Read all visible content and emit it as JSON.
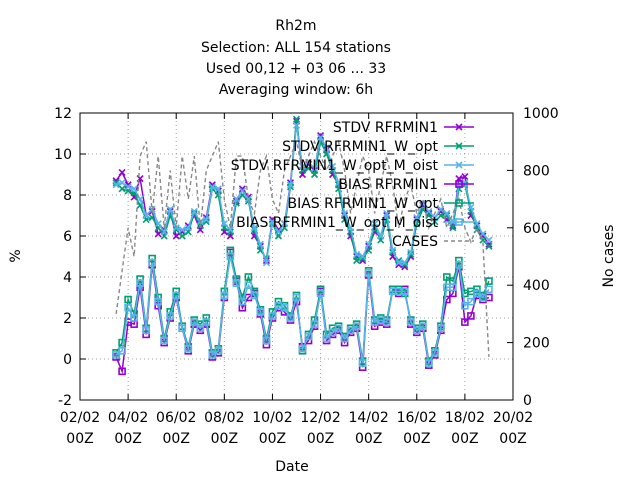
{
  "chart_data": {
    "type": "line",
    "title_lines": [
      "Rh2m",
      "Selection: ALL    154 stations",
      "Used  00,12  + 03 06 ... 33",
      "Averaging window:  6h"
    ],
    "xlabel": "Date",
    "ylabel": "%",
    "y2label": "No cases",
    "xlim": [
      0,
      18
    ],
    "ylim": [
      -2,
      12
    ],
    "y2lim": [
      0,
      1000
    ],
    "x_ticks": [
      {
        "v": 0,
        "l1": "02/02",
        "l2": "00Z"
      },
      {
        "v": 2,
        "l1": "04/02",
        "l2": "00Z"
      },
      {
        "v": 4,
        "l1": "06/02",
        "l2": "00Z"
      },
      {
        "v": 6,
        "l1": "08/02",
        "l2": "00Z"
      },
      {
        "v": 8,
        "l1": "10/02",
        "l2": "00Z"
      },
      {
        "v": 10,
        "l1": "12/02",
        "l2": "00Z"
      },
      {
        "v": 12,
        "l1": "14/02",
        "l2": "00Z"
      },
      {
        "v": 14,
        "l1": "16/02",
        "l2": "00Z"
      },
      {
        "v": 16,
        "l1": "18/02",
        "l2": "00Z"
      },
      {
        "v": 18,
        "l1": "20/02",
        "l2": "00Z"
      }
    ],
    "y_ticks": [
      "-2",
      "0",
      "2",
      "4",
      "6",
      "8",
      "10",
      "12"
    ],
    "y2_ticks": [
      "0",
      "200",
      "400",
      "600",
      "800",
      "1000"
    ],
    "grid": true,
    "legend_position": "top-right",
    "colors": {
      "purple": "#9400d3",
      "green": "#009e73",
      "skyblue": "#56b4e9",
      "cases": "#888888"
    },
    "x": [
      1.5,
      1.75,
      2.0,
      2.25,
      2.5,
      2.75,
      3.0,
      3.25,
      3.5,
      3.75,
      4.0,
      4.25,
      4.5,
      4.75,
      5.0,
      5.25,
      5.5,
      5.75,
      6.0,
      6.25,
      6.5,
      6.75,
      7.0,
      7.25,
      7.5,
      7.75,
      8.0,
      8.25,
      8.5,
      8.75,
      9.0,
      9.25,
      9.5,
      9.75,
      10.0,
      10.25,
      10.5,
      10.75,
      11.0,
      11.25,
      11.5,
      11.75,
      12.0,
      12.25,
      12.5,
      12.75,
      13.0,
      13.25,
      13.5,
      13.75,
      14.0,
      14.25,
      14.5,
      14.75,
      15.0,
      15.25,
      15.5,
      15.75,
      16.0,
      16.25,
      16.5,
      16.75,
      17.0
    ],
    "series": [
      {
        "name": "STDV RFRMIN1",
        "axis": "y1",
        "color": "#9400d3",
        "marker": "x",
        "dash": "",
        "values": [
          8.7,
          9.1,
          8.5,
          7.9,
          8.8,
          7.0,
          7.2,
          6.1,
          6.3,
          7.2,
          6.0,
          6.2,
          6.5,
          7.0,
          6.3,
          6.9,
          8.5,
          8.2,
          6.2,
          6.0,
          7.7,
          8.3,
          7.9,
          6.0,
          5.5,
          4.8,
          6.8,
          6.3,
          6.6,
          8.6,
          11.6,
          9.0,
          9.5,
          9.2,
          10.9,
          10.2,
          9.0,
          8.5,
          7.0,
          6.0,
          5.0,
          4.8,
          5.5,
          6.2,
          6.0,
          7.0,
          5.0,
          4.6,
          4.5,
          5.0,
          6.8,
          7.5,
          7.1,
          6.9,
          7.2,
          6.8,
          6.5,
          8.8,
          8.9,
          7.0,
          6.5,
          6.0,
          5.6
        ]
      },
      {
        "name": "STDV RFRMIN1_W_opt",
        "axis": "y1",
        "color": "#009e73",
        "marker": "x",
        "dash": "",
        "values": [
          8.6,
          8.3,
          8.2,
          8.1,
          7.5,
          6.8,
          6.9,
          6.4,
          6.0,
          7.0,
          6.3,
          6.0,
          6.2,
          7.1,
          6.5,
          6.7,
          8.3,
          8.0,
          6.4,
          6.2,
          7.6,
          8.0,
          7.7,
          6.3,
          5.3,
          4.9,
          6.6,
          6.0,
          6.4,
          8.4,
          11.7,
          9.2,
          9.3,
          9.0,
          10.6,
          10.0,
          9.2,
          8.3,
          6.8,
          6.2,
          4.8,
          4.9,
          5.3,
          6.4,
          5.8,
          6.8,
          5.2,
          4.8,
          4.6,
          5.1,
          6.6,
          7.3,
          7.0,
          6.7,
          7.0,
          7.0,
          6.4,
          8.3,
          8.5,
          7.2,
          6.3,
          5.8,
          5.5
        ]
      },
      {
        "name": "STDV RFRMIN1_W_opt_M_oist",
        "axis": "y1",
        "color": "#56b4e9",
        "marker": "x",
        "dash": "",
        "values": [
          8.5,
          8.6,
          8.4,
          8.3,
          7.8,
          7.0,
          7.3,
          6.6,
          6.2,
          7.3,
          6.4,
          6.3,
          6.4,
          7.2,
          6.7,
          6.8,
          8.4,
          8.3,
          6.6,
          6.3,
          7.8,
          8.2,
          7.8,
          6.4,
          5.6,
          4.7,
          6.7,
          6.2,
          6.6,
          8.5,
          11.4,
          9.4,
          9.6,
          9.3,
          10.8,
          10.3,
          9.4,
          8.6,
          7.1,
          6.4,
          5.1,
          5.0,
          5.6,
          6.6,
          6.0,
          7.1,
          5.3,
          4.7,
          4.7,
          5.2,
          6.9,
          7.6,
          7.2,
          6.9,
          7.3,
          7.1,
          6.7,
          8.5,
          8.6,
          7.4,
          6.6,
          6.1,
          5.8
        ]
      },
      {
        "name": "BIAS RFRMIN1",
        "axis": "y1",
        "color": "#9400d3",
        "marker": "square",
        "dash": "",
        "values": [
          0.1,
          -0.6,
          1.8,
          1.7,
          3.5,
          1.2,
          4.6,
          2.6,
          0.8,
          2.0,
          3.0,
          1.5,
          0.4,
          1.7,
          1.4,
          1.7,
          0.1,
          0.3,
          3.0,
          5.2,
          3.8,
          2.5,
          3.0,
          3.2,
          2.2,
          0.7,
          2.0,
          2.5,
          2.3,
          1.9,
          2.8,
          0.6,
          0.9,
          1.6,
          3.3,
          0.9,
          1.2,
          1.4,
          0.8,
          1.3,
          1.5,
          -0.4,
          4.1,
          1.6,
          1.8,
          1.7,
          3.4,
          3.2,
          3.4,
          1.7,
          1.3,
          1.5,
          -0.3,
          0.2,
          1.4,
          2.9,
          3.2,
          4.5,
          1.8,
          2.1,
          3.1,
          2.9,
          3.0
        ]
      },
      {
        "name": "BIAS RFRMIN1_W_opt",
        "axis": "y1",
        "color": "#009e73",
        "marker": "square",
        "dash": "",
        "values": [
          0.3,
          0.8,
          2.9,
          2.2,
          3.9,
          1.5,
          4.9,
          3.0,
          1.0,
          2.3,
          3.3,
          1.6,
          0.6,
          1.9,
          1.7,
          2.0,
          0.3,
          0.5,
          3.3,
          5.3,
          3.9,
          3.0,
          4.0,
          3.3,
          2.4,
          1.0,
          2.3,
          2.8,
          2.6,
          2.1,
          3.1,
          0.4,
          1.2,
          1.9,
          3.4,
          1.2,
          1.5,
          1.6,
          1.1,
          1.5,
          1.7,
          -0.1,
          4.3,
          1.9,
          2.0,
          1.9,
          3.4,
          3.4,
          3.2,
          1.9,
          1.5,
          1.7,
          -0.1,
          0.4,
          1.6,
          4.0,
          3.8,
          4.8,
          3.2,
          3.3,
          3.4,
          3.1,
          3.8
        ]
      },
      {
        "name": "BIAS RFRMIN1_W_opt_M_oist",
        "axis": "y1",
        "color": "#56b4e9",
        "marker": "square",
        "dash": "",
        "values": [
          0.2,
          0.4,
          2.5,
          2.0,
          3.7,
          1.4,
          4.7,
          2.8,
          0.9,
          2.1,
          3.1,
          1.5,
          0.5,
          1.8,
          1.5,
          1.8,
          0.2,
          0.4,
          3.1,
          5.0,
          3.7,
          2.8,
          3.6,
          3.1,
          2.3,
          0.9,
          2.1,
          2.6,
          2.5,
          2.0,
          3.0,
          0.5,
          1.1,
          1.7,
          3.2,
          1.0,
          1.3,
          1.5,
          1.0,
          1.4,
          1.6,
          -0.2,
          4.2,
          1.8,
          1.9,
          1.8,
          3.3,
          3.3,
          3.3,
          1.8,
          1.4,
          1.6,
          -0.2,
          0.3,
          1.5,
          3.5,
          3.5,
          4.6,
          2.6,
          2.8,
          3.2,
          3.0,
          3.4
        ]
      },
      {
        "name": "CASES",
        "axis": "y2",
        "color": "#888888",
        "marker": "",
        "dash": "4,3",
        "values": [
          300,
          450,
          600,
          500,
          850,
          900,
          650,
          850,
          600,
          800,
          600,
          850,
          700,
          850,
          600,
          800,
          850,
          900,
          700,
          600,
          850,
          850,
          700,
          650,
          800,
          850,
          700,
          650,
          800,
          850,
          900,
          800,
          850,
          900,
          850,
          800,
          850,
          900,
          800,
          650,
          750,
          850,
          800,
          650,
          750,
          850,
          750,
          600,
          700,
          750,
          650,
          700,
          600,
          650,
          700,
          600,
          650,
          700,
          600,
          550,
          600,
          550,
          150
        ]
      }
    ]
  }
}
